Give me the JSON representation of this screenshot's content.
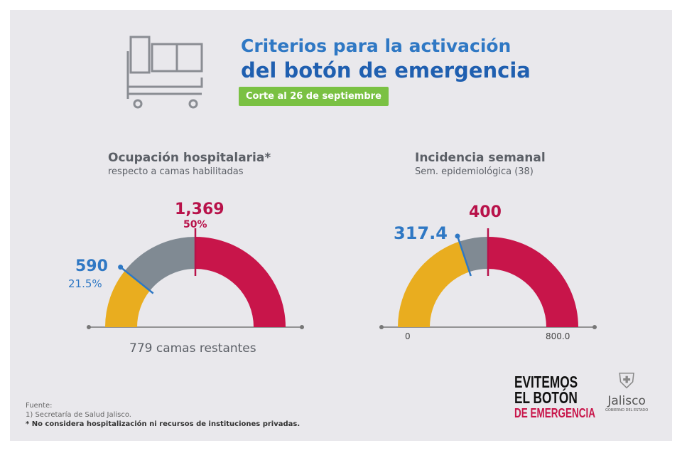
{
  "header": {
    "title_line1": "Criterios para la activación",
    "title_line2": "del botón de emergencia",
    "badge": "Corte al 26 de septiembre"
  },
  "chart_data": [
    {
      "type": "gauge",
      "title": "Ocupación hospitalaria*",
      "subtitle": "respecto a camas habilitadas",
      "max": 2738,
      "current": {
        "value": "590",
        "percent": "21.5%",
        "fraction": 0.215
      },
      "threshold": {
        "value": "1,369",
        "percent": "50%",
        "fraction": 0.5
      },
      "footer": "779 camas restantes",
      "colors": {
        "current": "#e9ad1f",
        "gap": "#808a93",
        "over": "#c8154a"
      }
    },
    {
      "type": "gauge",
      "title": "Incidencia semanal",
      "subtitle": "Sem. epidemiológica (38)",
      "min_label": "0",
      "max_label": "800.0",
      "range": [
        0,
        800
      ],
      "current": {
        "value": "317.4",
        "number": 317.4
      },
      "threshold": {
        "value": "400",
        "number": 400
      },
      "colors": {
        "current": "#e9ad1f",
        "gap": "#808a93",
        "over": "#c8154a"
      }
    }
  ],
  "footer": {
    "source_label": "Fuente:",
    "source": "1) Secretaría de Salud Jalisco.",
    "note": "* No considera hospitalización ni recursos de instituciones privadas."
  },
  "logos": {
    "campaign_line1": "EVITEMOS",
    "campaign_line2": "EL BOTÓN",
    "campaign_line3": "DE EMERGENCIA",
    "gov": "Jalisco",
    "gov_sub": "GOBIERNO DEL ESTADO"
  }
}
